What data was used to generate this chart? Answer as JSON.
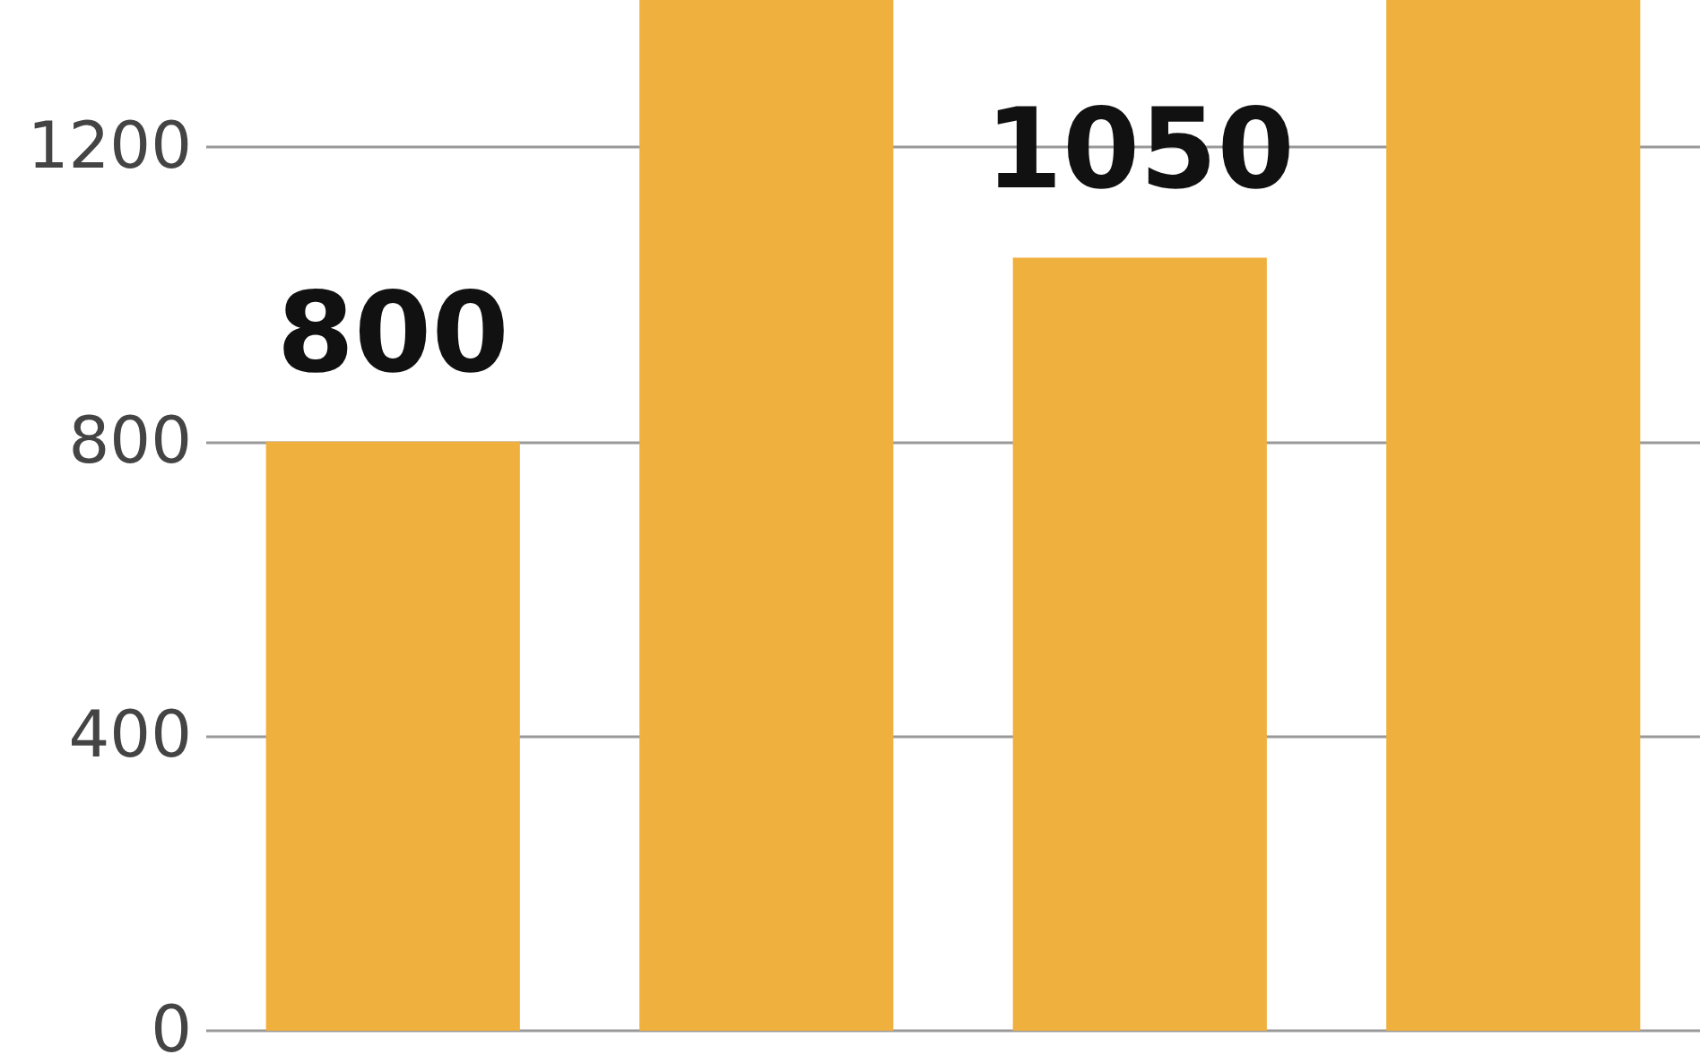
{
  "chart_data": {
    "type": "bar",
    "categories": [
      null,
      null,
      null,
      null
    ],
    "values": [
      800,
      1400,
      1050,
      1400
    ],
    "value_labels": [
      "800",
      null,
      "1050",
      null
    ],
    "color": "#f0b03e",
    "ylim": [
      0,
      1400
    ],
    "yticks": [
      0,
      400,
      800,
      1200
    ],
    "grid": "y"
  }
}
